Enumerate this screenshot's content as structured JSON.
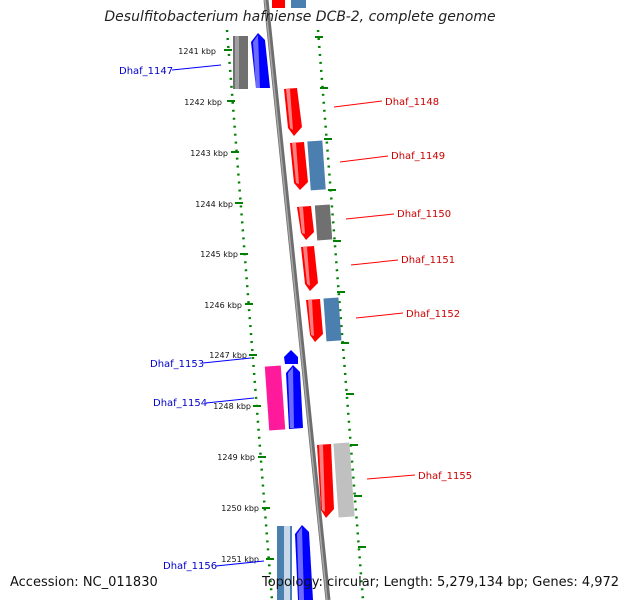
{
  "title": "Desulfitobacterium hafniense DCB-2, complete genome",
  "accession": "Accession: NC_011830",
  "topology": "Topology: circular; Length: 5,279,134 bp; Genes: 4,972",
  "colors": {
    "forward": "#0000ff",
    "reverse": "#ff0000",
    "gray": "#707070",
    "lightgray": "#c8c8c8",
    "steel": "#4a7fb0",
    "pink": "#ff1a9c",
    "tick": "#008000",
    "backbone": "#777777"
  },
  "ticks": [
    "1241 kbp",
    "1242 kbp",
    "1243 kbp",
    "1244 kbp",
    "1245 kbp",
    "1246 kbp",
    "1247 kbp",
    "1248 kbp",
    "1249 kbp",
    "1250 kbp",
    "1251 kbp"
  ],
  "gene_labels": [
    {
      "text": "Dhaf_1147",
      "strand": "forward"
    },
    {
      "text": "Dhaf_1148",
      "strand": "reverse"
    },
    {
      "text": "Dhaf_1149",
      "strand": "reverse"
    },
    {
      "text": "Dhaf_1150",
      "strand": "reverse"
    },
    {
      "text": "Dhaf_1151",
      "strand": "reverse"
    },
    {
      "text": "Dhaf_1152",
      "strand": "reverse"
    },
    {
      "text": "Dhaf_1153",
      "strand": "forward"
    },
    {
      "text": "Dhaf_1154",
      "strand": "forward"
    },
    {
      "text": "Dhaf_1155",
      "strand": "reverse"
    },
    {
      "text": "Dhaf_1156",
      "strand": "forward"
    }
  ]
}
